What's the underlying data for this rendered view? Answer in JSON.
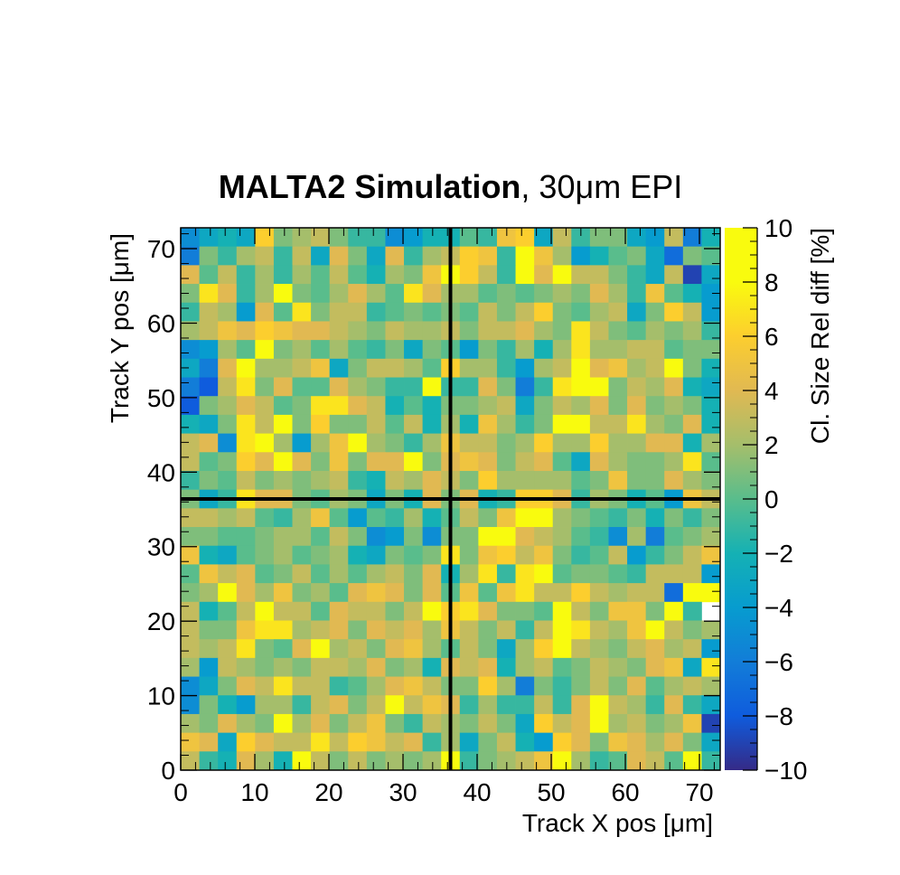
{
  "title": {
    "bold": "MALTA2 Simulation",
    "rest": ", 30μm EPI"
  },
  "chart_data": {
    "type": "heatmap",
    "title": "MALTA2 Simulation, 30μm EPI",
    "xlabel": "Track X pos [μm]",
    "ylabel": "Track Y pos [μm]",
    "zlabel": "Cl. Size Rel diff [%]",
    "xlim": [
      0,
      72.8
    ],
    "ylim": [
      0,
      72.8
    ],
    "zlim": [
      -10,
      10
    ],
    "x_ticks": [
      "0",
      "10",
      "20",
      "30",
      "40",
      "50",
      "60",
      "70"
    ],
    "y_ticks": [
      "0",
      "10",
      "20",
      "30",
      "40",
      "50",
      "60",
      "70"
    ],
    "z_ticks": [
      "−10",
      "−8",
      "−6",
      "−4",
      "−2",
      "0",
      "2",
      "4",
      "6",
      "8",
      "10"
    ],
    "nx": 29,
    "ny": 29,
    "pixel_boundary": 36.4,
    "cell_values_note": "Approximate per-bin values (z, %), rows listed from top (y≈72) to bottom (y≈0); null = empty bin",
    "cells": [
      [
        -5,
        -3,
        -2,
        -3,
        6,
        1,
        2,
        3,
        1,
        -1,
        -1,
        -5,
        -4,
        -2,
        -2,
        0,
        -1,
        5,
        6,
        -3,
        3,
        -1,
        1,
        1,
        -3,
        -4,
        3,
        -6,
        -2
      ],
      [
        -6,
        1,
        -1,
        2,
        3,
        -1,
        3,
        -3,
        4,
        1,
        -3,
        4,
        -1,
        2,
        3,
        6,
        5,
        -1,
        10,
        5,
        2,
        -4,
        -2,
        0,
        1,
        -3,
        -7,
        1,
        0
      ],
      [
        4,
        0,
        3,
        -1,
        2,
        -1,
        2,
        0,
        3,
        0,
        -2,
        2,
        1,
        5,
        10,
        6,
        3,
        -1,
        10,
        4,
        10,
        3,
        3,
        1,
        -1,
        -3,
        3,
        -9,
        -3
      ],
      [
        1,
        7,
        4,
        -1,
        2,
        8,
        1,
        0,
        2,
        4,
        2,
        0,
        7,
        4,
        2,
        2,
        0,
        1,
        0,
        1,
        2,
        1,
        4,
        2,
        -1,
        5,
        0,
        -2,
        -4
      ],
      [
        -1,
        3,
        2,
        -4,
        4,
        0,
        7,
        1,
        3,
        3,
        -1,
        0,
        1,
        0,
        1,
        0,
        3,
        1,
        3,
        6,
        1,
        0,
        2,
        3,
        -3,
        1,
        6,
        3,
        -4
      ],
      [
        2,
        3,
        5,
        4,
        6,
        5,
        4,
        4,
        3,
        2,
        1,
        3,
        2,
        2,
        3,
        1,
        3,
        3,
        4,
        2,
        1,
        7,
        3,
        1,
        0,
        2,
        1,
        2,
        -1
      ],
      [
        -5,
        -4,
        2,
        0,
        8,
        1,
        2,
        0,
        2,
        0,
        -1,
        1,
        -3,
        1,
        0,
        -4,
        1,
        -1,
        2,
        -2,
        2,
        7,
        2,
        2,
        3,
        3,
        0,
        1,
        1
      ],
      [
        -3,
        -6,
        4,
        8,
        2,
        2,
        3,
        5,
        -3,
        1,
        3,
        3,
        2,
        0,
        6,
        2,
        2,
        -1,
        -4,
        2,
        3,
        8,
        4,
        5,
        2,
        3,
        8,
        1,
        -2
      ],
      [
        -6,
        -8,
        3,
        7,
        1,
        4,
        0,
        0,
        4,
        2,
        1,
        -1,
        -1,
        10,
        -1,
        -1,
        4,
        1,
        -6,
        -1,
        7,
        8,
        10,
        1,
        3,
        2,
        4,
        -2,
        -3
      ],
      [
        -8,
        1,
        2,
        4,
        3,
        0,
        1,
        7,
        7,
        4,
        3,
        -2,
        0,
        -2,
        1,
        1,
        2,
        3,
        -3,
        1,
        3,
        2,
        4,
        1,
        4,
        1,
        2,
        1,
        -2
      ],
      [
        -2,
        -3,
        1,
        7,
        3,
        10,
        1,
        6,
        1,
        1,
        3,
        0,
        3,
        -2,
        2,
        -2,
        5,
        2,
        -1,
        1,
        8,
        8,
        3,
        3,
        7,
        2,
        1,
        4,
        -2
      ],
      [
        3,
        4,
        -5,
        7,
        8,
        2,
        -4,
        2,
        5,
        10,
        2,
        1,
        -1,
        2,
        5,
        3,
        3,
        1,
        2,
        6,
        2,
        2,
        6,
        2,
        2,
        4,
        4,
        -2,
        2
      ],
      [
        3,
        0,
        1,
        6,
        4,
        8,
        4,
        1,
        5,
        1,
        4,
        4,
        10,
        1,
        4,
        5,
        4,
        1,
        3,
        4,
        0,
        -3,
        4,
        2,
        1,
        1,
        2,
        7,
        0
      ],
      [
        -1,
        1,
        0,
        3,
        1,
        2,
        1,
        2,
        3,
        -1,
        -2,
        3,
        2,
        4,
        3,
        1,
        6,
        2,
        2,
        2,
        2,
        0,
        1,
        5,
        1,
        1,
        4,
        2,
        1
      ],
      [
        1,
        -3,
        -1,
        7,
        4,
        4,
        1,
        0,
        2,
        1,
        -3,
        1,
        -2,
        4,
        1,
        4,
        -2,
        -1,
        6,
        6,
        4,
        -1,
        2,
        1,
        -2,
        0,
        -4,
        5,
        3
      ],
      [
        3,
        3,
        2,
        3,
        0,
        -1,
        2,
        5,
        0,
        -4,
        0,
        -1,
        2,
        -2,
        0,
        3,
        1,
        5,
        8,
        8,
        2,
        1,
        0,
        -1,
        1,
        -2,
        1,
        -1,
        1
      ],
      [
        1,
        1,
        0,
        0,
        1,
        2,
        2,
        0,
        3,
        1,
        -5,
        -4,
        1,
        -5,
        1,
        1,
        10,
        10,
        4,
        3,
        2,
        0,
        -1,
        -5,
        2,
        -6,
        0,
        1,
        2
      ],
      [
        5,
        -2,
        -3,
        0,
        1,
        2,
        0,
        1,
        2,
        -2,
        -3,
        1,
        0,
        1,
        7,
        1,
        5,
        6,
        3,
        5,
        1,
        -1,
        0,
        3,
        -4,
        -1,
        1,
        3,
        5
      ],
      [
        0,
        5,
        3,
        4,
        0,
        1,
        3,
        0,
        2,
        0,
        2,
        3,
        1,
        4,
        -2,
        2,
        7,
        -1,
        7,
        9,
        0,
        1,
        1,
        0,
        -1,
        3,
        3,
        3,
        -4
      ],
      [
        1,
        2,
        10,
        4,
        2,
        5,
        1,
        2,
        0,
        4,
        5,
        4,
        1,
        4,
        0,
        5,
        0,
        5,
        7,
        3,
        3,
        6,
        3,
        2,
        3,
        3,
        -7,
        10,
        8
      ],
      [
        3,
        -2,
        0,
        3,
        8,
        3,
        3,
        0,
        4,
        3,
        3,
        1,
        3,
        9,
        6,
        7,
        4,
        1,
        1,
        0,
        10,
        3,
        1,
        5,
        5,
        1,
        9,
        -1,
        null
      ],
      [
        3,
        1,
        1,
        5,
        7,
        7,
        2,
        3,
        4,
        1,
        4,
        3,
        4,
        2,
        5,
        3,
        1,
        3,
        -1,
        3,
        9,
        7,
        3,
        2,
        5,
        8,
        3,
        1,
        2
      ],
      [
        3,
        2,
        3,
        7,
        1,
        0,
        4,
        9,
        2,
        3,
        1,
        4,
        5,
        2,
        0,
        3,
        1,
        -3,
        2,
        6,
        8,
        3,
        2,
        1,
        3,
        4,
        2,
        3,
        -4
      ],
      [
        2,
        -4,
        3,
        2,
        1,
        2,
        1,
        3,
        3,
        2,
        4,
        1,
        2,
        -2,
        4,
        3,
        4,
        -2,
        2,
        3,
        0,
        1,
        3,
        2,
        1,
        4,
        5,
        -3,
        7
      ],
      [
        -5,
        -3,
        1,
        4,
        3,
        7,
        3,
        3,
        -1,
        0,
        2,
        4,
        5,
        3,
        1,
        1,
        6,
        2,
        -6,
        1,
        -1,
        1,
        3,
        1,
        4,
        0,
        2,
        3,
        2
      ],
      [
        -5,
        1,
        -2,
        -4,
        2,
        2,
        -1,
        3,
        4,
        1,
        3,
        10,
        3,
        5,
        4,
        -1,
        2,
        -1,
        -1,
        3,
        -1,
        4,
        10,
        3,
        2,
        -1,
        4,
        -1,
        -3
      ],
      [
        2,
        1,
        4,
        2,
        1,
        10,
        2,
        4,
        1,
        3,
        5,
        1,
        -1,
        3,
        2,
        1,
        3,
        1,
        -3,
        6,
        3,
        4,
        10,
        2,
        3,
        1,
        2,
        5,
        -9
      ],
      [
        5,
        4,
        -3,
        6,
        4,
        3,
        3,
        7,
        3,
        6,
        5,
        3,
        4,
        -1,
        2,
        -3,
        1,
        3,
        -2,
        -4,
        6,
        4,
        1,
        5,
        4,
        2,
        4,
        1,
        -3
      ],
      [
        3,
        -1,
        -2,
        4,
        2,
        -2,
        8,
        3,
        1,
        3,
        1,
        2,
        1,
        2,
        8,
        -1,
        1,
        2,
        3,
        5,
        10,
        2,
        -1,
        0,
        4,
        3,
        0,
        10,
        -1
      ]
    ]
  }
}
